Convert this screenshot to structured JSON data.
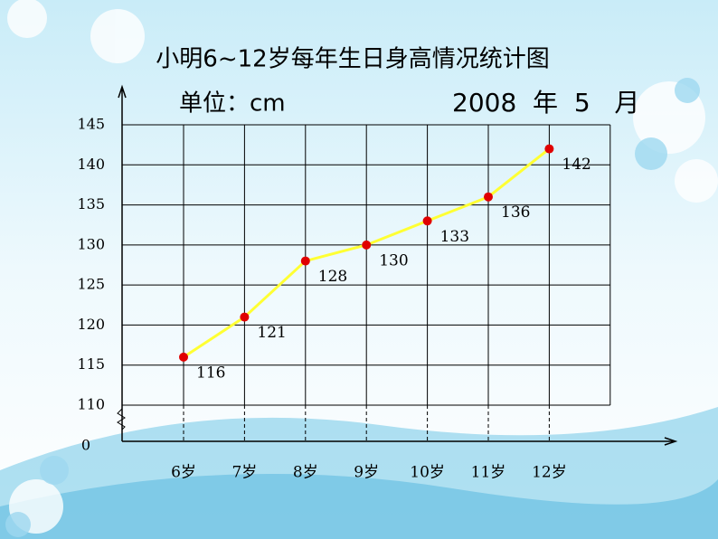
{
  "chart_data": {
    "type": "line",
    "title": "小明6~12岁每年生日身高情况统计图",
    "unit": "单位：cm",
    "date": "2008  年  5   月",
    "categories": [
      "6岁",
      "7岁",
      "8岁",
      "9岁",
      "10岁",
      "11岁",
      "12岁"
    ],
    "series": [
      {
        "color": "#ffff33",
        "marker_color": "#e00000",
        "values": [
          116,
          121,
          128,
          130,
          133,
          136,
          142
        ]
      }
    ],
    "ylim": [
      110,
      145
    ],
    "yticks": [
      110,
      115,
      120,
      125,
      130,
      135,
      140,
      145
    ],
    "origin_tick": 0,
    "grid": true
  }
}
